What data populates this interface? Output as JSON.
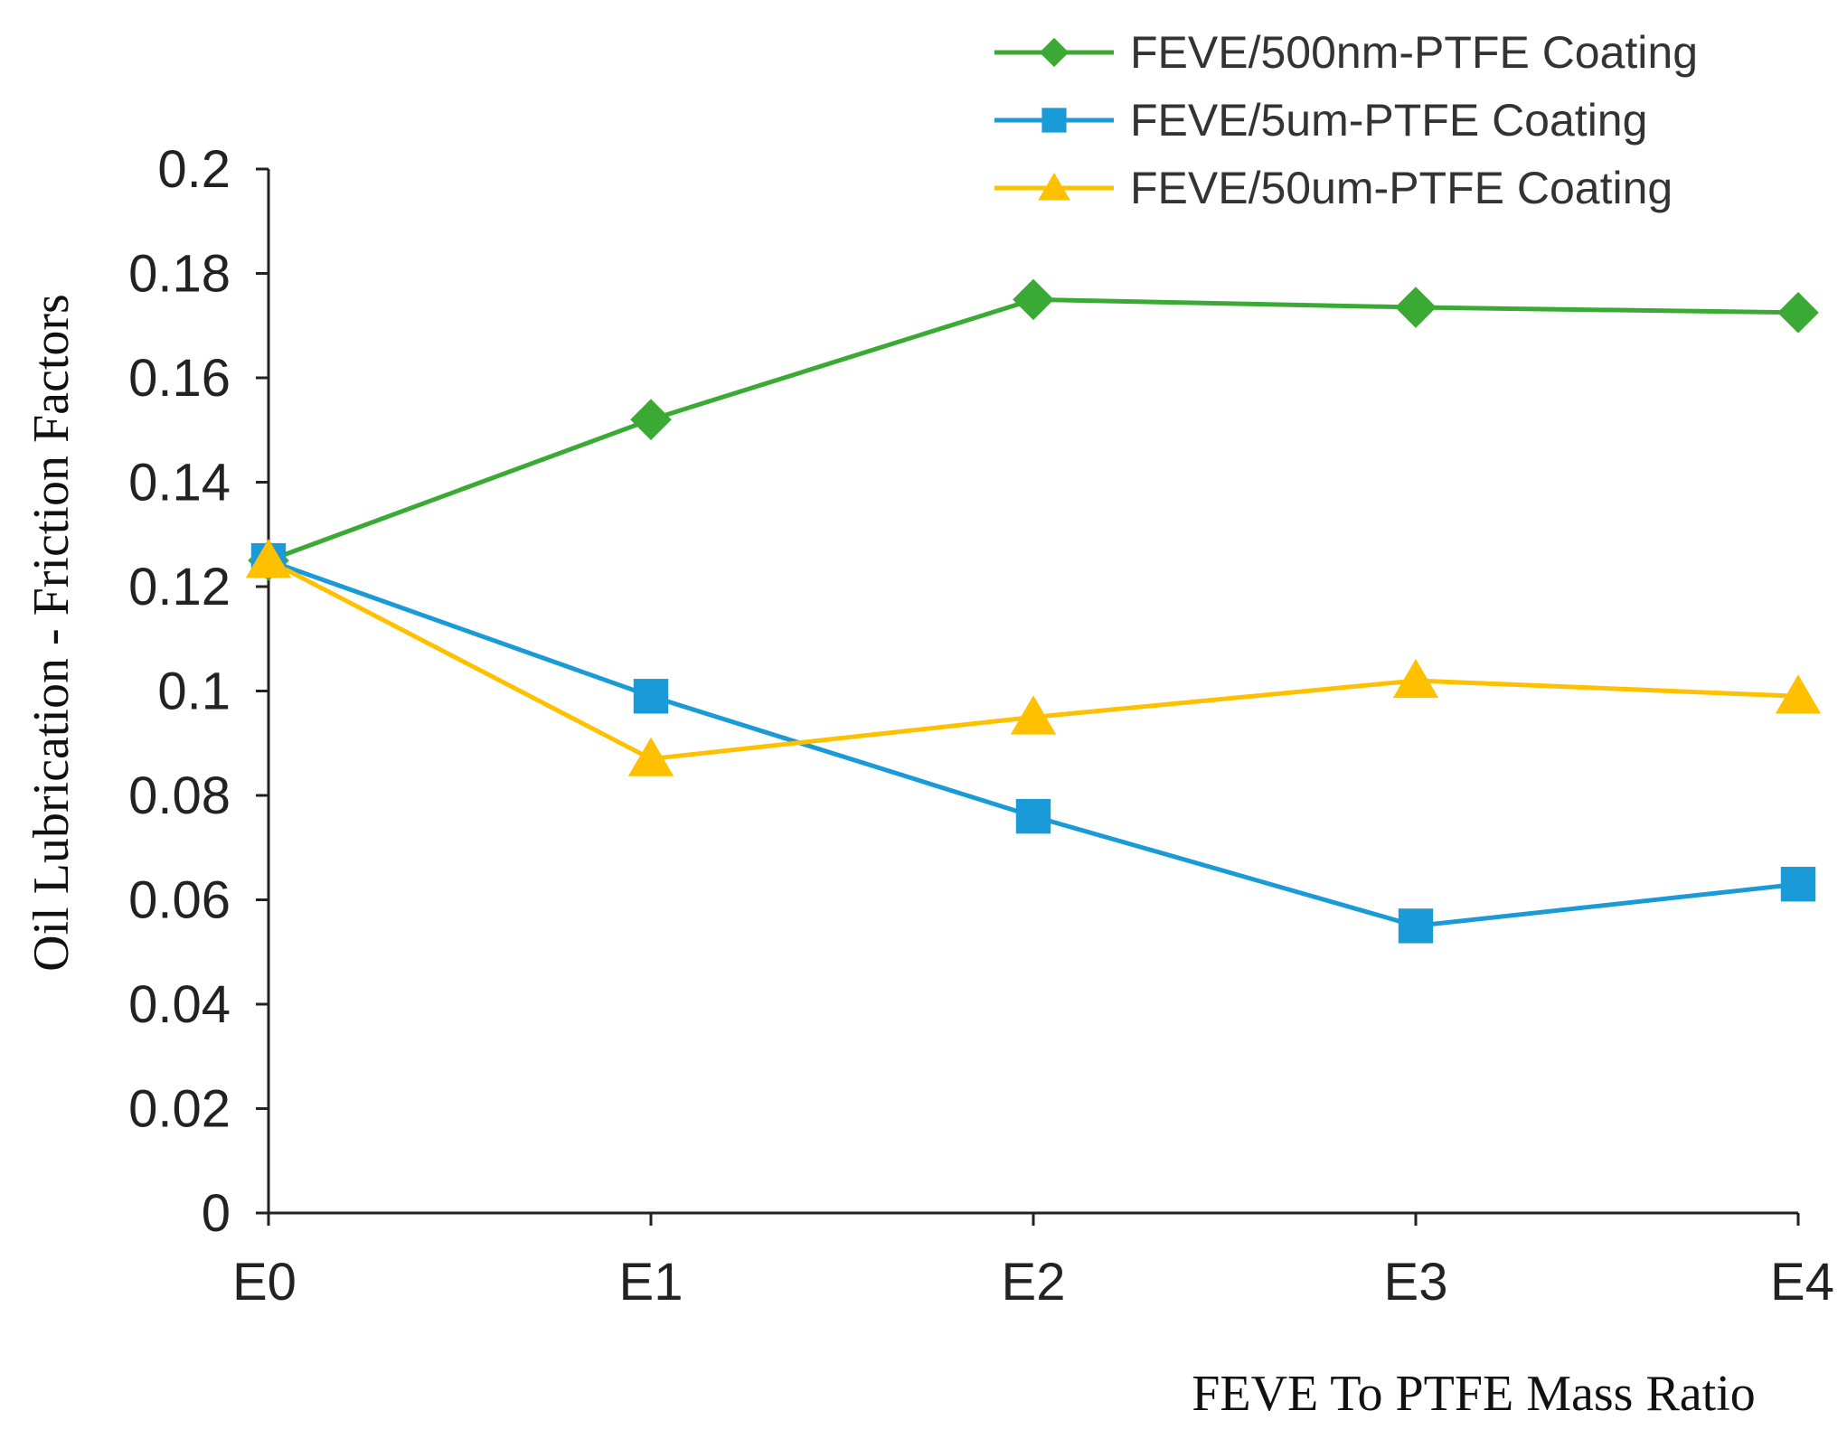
{
  "chart_data": {
    "type": "line",
    "categories": [
      "E0",
      "E1",
      "E2",
      "E3",
      "E4"
    ],
    "series": [
      {
        "name": "FEVE/500nm-PTFE Coating",
        "color": "#3aaa35",
        "marker": "diamond",
        "values": [
          0.125,
          0.152,
          0.175,
          0.1735,
          0.1725
        ]
      },
      {
        "name": "FEVE/5um-PTFE Coating",
        "color": "#1a9ad6",
        "marker": "square",
        "values": [
          0.125,
          0.099,
          0.076,
          0.055,
          0.063
        ]
      },
      {
        "name": "FEVE/50um-PTFE Coating",
        "color": "#ffc000",
        "marker": "triangle",
        "values": [
          0.125,
          0.087,
          0.095,
          0.102,
          0.099
        ]
      }
    ],
    "yticks": [
      "0",
      "0.02",
      "0.04",
      "0.06",
      "0.08",
      "0.1",
      "0.12",
      "0.14",
      "0.16",
      "0.18",
      "0.2"
    ],
    "ylim": [
      0,
      0.2
    ],
    "xlabel": "FEVE To PTFE Mass Ratio",
    "ylabel": "Oil Lubrication - Friction Factors",
    "legend_position": "top-right"
  }
}
